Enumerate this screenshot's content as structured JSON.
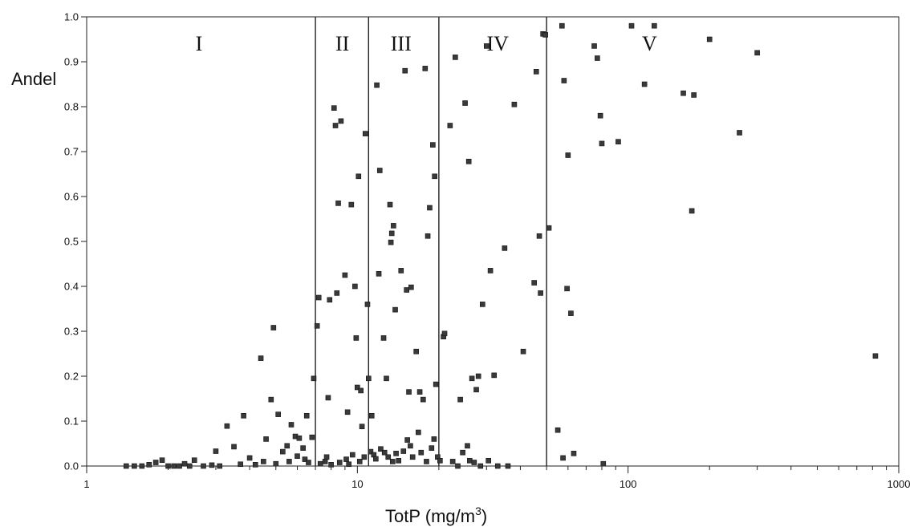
{
  "chart_data": {
    "type": "scatter",
    "xscale": "log",
    "xlim": [
      1,
      1000
    ],
    "ylim": [
      0,
      1.0
    ],
    "xlabel": "TotP (mg/m",
    "xlabel_sup": "3",
    "xlabel_close": ")",
    "ylabel": "Andel",
    "xticks": [
      1,
      10,
      100,
      1000
    ],
    "xtick_labels": [
      "1",
      "10",
      "100",
      "1000"
    ],
    "yticks": [
      0.0,
      0.1,
      0.2,
      0.3,
      0.4,
      0.5,
      0.6,
      0.7,
      0.8,
      0.9,
      1.0
    ],
    "ytick_labels": [
      "0.0",
      "0.1",
      "0.2",
      "0.3",
      "0.4",
      "0.5",
      "0.6",
      "0.7",
      "0.8",
      "0.9",
      "1.0"
    ],
    "grid": false,
    "zone_boundaries": [
      7,
      11,
      20,
      50
    ],
    "zones": [
      {
        "label": "I",
        "x": 2.6
      },
      {
        "label": "II",
        "x": 8.8
      },
      {
        "label": "III",
        "x": 14.5
      },
      {
        "label": "IV",
        "x": 33
      },
      {
        "label": "V",
        "x": 120
      }
    ],
    "points": [
      [
        1.4,
        0
      ],
      [
        1.5,
        0
      ],
      [
        1.6,
        0
      ],
      [
        1.7,
        0.003
      ],
      [
        1.8,
        0.008
      ],
      [
        1.9,
        0.013
      ],
      [
        2.0,
        0
      ],
      [
        2.1,
        0
      ],
      [
        2.4,
        0
      ],
      [
        2.5,
        0.013
      ],
      [
        2.7,
        0
      ],
      [
        2.9,
        0.002
      ],
      [
        3.0,
        0.033
      ],
      [
        3.3,
        0.089
      ],
      [
        3.5,
        0.043
      ],
      [
        3.8,
        0.112
      ],
      [
        4.0,
        0.018
      ],
      [
        4.2,
        0.003
      ],
      [
        4.4,
        0.24
      ],
      [
        4.6,
        0.06
      ],
      [
        4.8,
        0.148
      ],
      [
        4.9,
        0.308
      ],
      [
        5.1,
        0.115
      ],
      [
        5.3,
        0.032
      ],
      [
        5.5,
        0.045
      ],
      [
        5.7,
        0.092
      ],
      [
        5.9,
        0.066
      ],
      [
        6.1,
        0.062
      ],
      [
        6.3,
        0.04
      ],
      [
        6.5,
        0.112
      ],
      [
        6.8,
        0.064
      ],
      [
        6.9,
        0.195
      ],
      [
        7.2,
        0.375
      ],
      [
        7.1,
        0.312
      ],
      [
        7.8,
        0.152
      ],
      [
        7.9,
        0.37
      ],
      [
        8.2,
        0.797
      ],
      [
        8.3,
        0.758
      ],
      [
        8.4,
        0.385
      ],
      [
        8.5,
        0.585
      ],
      [
        8.7,
        0.768
      ],
      [
        9.0,
        0.425
      ],
      [
        9.2,
        0.12
      ],
      [
        9.5,
        0.582
      ],
      [
        9.8,
        0.4
      ],
      [
        9.9,
        0.285
      ],
      [
        10.0,
        0.175
      ],
      [
        10.1,
        0.645
      ],
      [
        10.3,
        0.168
      ],
      [
        10.4,
        0.088
      ],
      [
        10.7,
        0.74
      ],
      [
        10.9,
        0.36
      ],
      [
        11.0,
        0.195
      ],
      [
        11.3,
        0.112
      ],
      [
        11.8,
        0.848
      ],
      [
        12.0,
        0.428
      ],
      [
        12.1,
        0.658
      ],
      [
        12.5,
        0.285
      ],
      [
        12.8,
        0.195
      ],
      [
        13.2,
        0.582
      ],
      [
        13.3,
        0.498
      ],
      [
        13.4,
        0.518
      ],
      [
        13.6,
        0.535
      ],
      [
        13.8,
        0.348
      ],
      [
        14.5,
        0.435
      ],
      [
        15.0,
        0.88
      ],
      [
        15.2,
        0.392
      ],
      [
        15.5,
        0.165
      ],
      [
        15.8,
        0.398
      ],
      [
        16.5,
        0.255
      ],
      [
        17.0,
        0.165
      ],
      [
        17.5,
        0.148
      ],
      [
        17.8,
        0.885
      ],
      [
        18.2,
        0.512
      ],
      [
        18.5,
        0.575
      ],
      [
        19.0,
        0.715
      ],
      [
        19.3,
        0.645
      ],
      [
        19.5,
        0.182
      ],
      [
        20.8,
        0.288
      ],
      [
        21.0,
        0.295
      ],
      [
        22.0,
        0.758
      ],
      [
        23.0,
        0.91
      ],
      [
        24.0,
        0.148
      ],
      [
        25.0,
        0.808
      ],
      [
        25.8,
        0.678
      ],
      [
        26.5,
        0.195
      ],
      [
        27.5,
        0.17
      ],
      [
        28.0,
        0.2
      ],
      [
        29.0,
        0.36
      ],
      [
        30.0,
        0.935
      ],
      [
        31.0,
        0.435
      ],
      [
        32.0,
        0.202
      ],
      [
        35.0,
        0.485
      ],
      [
        38.0,
        0.805
      ],
      [
        41.0,
        0.255
      ],
      [
        45.0,
        0.408
      ],
      [
        45.8,
        0.878
      ],
      [
        47.0,
        0.512
      ],
      [
        47.5,
        0.385
      ],
      [
        48.5,
        0.962
      ],
      [
        49.5,
        0.96
      ],
      [
        51.0,
        0.53
      ],
      [
        55.0,
        0.08
      ],
      [
        57.0,
        0.98
      ],
      [
        58.0,
        0.858
      ],
      [
        59.5,
        0.395
      ],
      [
        60.0,
        0.692
      ],
      [
        61.5,
        0.34
      ],
      [
        63.0,
        0.028
      ],
      [
        57.5,
        0.018
      ],
      [
        75.0,
        0.935
      ],
      [
        77.0,
        0.908
      ],
      [
        79.0,
        0.78
      ],
      [
        80.0,
        0.718
      ],
      [
        81.0,
        0.005
      ],
      [
        92.0,
        0.722
      ],
      [
        103.0,
        0.98
      ],
      [
        115.0,
        0.85
      ],
      [
        125.0,
        0.98
      ],
      [
        160.0,
        0.83
      ],
      [
        172.0,
        0.568
      ],
      [
        175.0,
        0.826
      ],
      [
        200.0,
        0.95
      ],
      [
        258.0,
        0.742
      ],
      [
        300.0,
        0.92
      ],
      [
        820.0,
        0.245
      ],
      [
        7.3,
        0.005
      ],
      [
        7.6,
        0.01
      ],
      [
        7.7,
        0.02
      ],
      [
        8.0,
        0.003
      ],
      [
        8.6,
        0.008
      ],
      [
        9.1,
        0.015
      ],
      [
        9.3,
        0.004
      ],
      [
        9.6,
        0.025
      ],
      [
        10.2,
        0.01
      ],
      [
        10.6,
        0.02
      ],
      [
        11.2,
        0.032
      ],
      [
        11.5,
        0.025
      ],
      [
        11.7,
        0.016
      ],
      [
        12.2,
        0.038
      ],
      [
        12.6,
        0.03
      ],
      [
        13.0,
        0.02
      ],
      [
        13.5,
        0.01
      ],
      [
        13.9,
        0.028
      ],
      [
        14.2,
        0.012
      ],
      [
        14.8,
        0.033
      ],
      [
        15.3,
        0.058
      ],
      [
        15.7,
        0.045
      ],
      [
        16.0,
        0.02
      ],
      [
        16.8,
        0.075
      ],
      [
        17.2,
        0.03
      ],
      [
        18.0,
        0.01
      ],
      [
        18.8,
        0.04
      ],
      [
        19.2,
        0.06
      ],
      [
        19.8,
        0.02
      ],
      [
        20.2,
        0.012
      ],
      [
        22.5,
        0.01
      ],
      [
        23.5,
        0
      ],
      [
        24.5,
        0.03
      ],
      [
        25.5,
        0.045
      ],
      [
        26.0,
        0.012
      ],
      [
        27.0,
        0.008
      ],
      [
        28.5,
        0
      ],
      [
        30.5,
        0.012
      ],
      [
        33.0,
        0
      ],
      [
        36.0,
        0
      ],
      [
        5.0,
        0.005
      ],
      [
        5.6,
        0.01
      ],
      [
        6.0,
        0.022
      ],
      [
        6.4,
        0.015
      ],
      [
        6.6,
        0.008
      ],
      [
        4.5,
        0.01
      ],
      [
        3.7,
        0.004
      ],
      [
        3.1,
        0
      ],
      [
        2.2,
        0
      ],
      [
        2.3,
        0.005
      ]
    ]
  }
}
